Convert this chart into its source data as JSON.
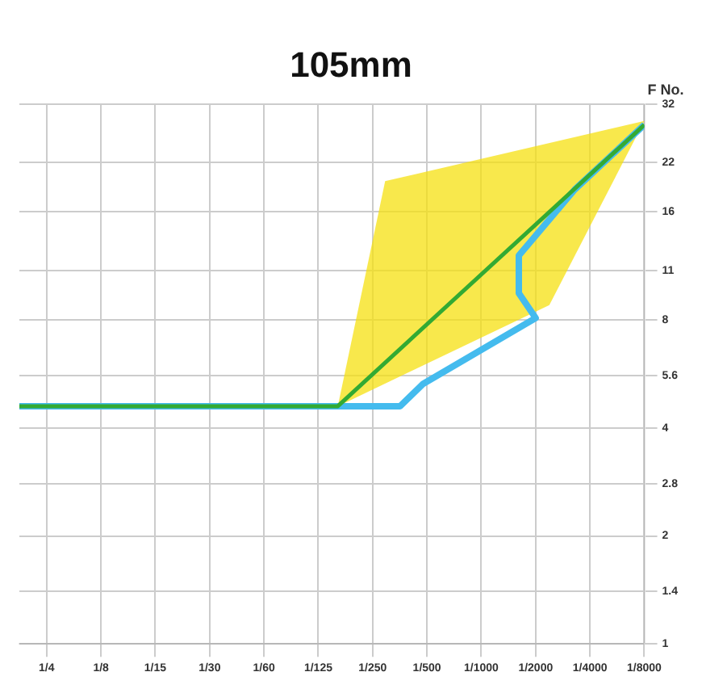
{
  "chart_data": {
    "type": "line",
    "title": "105mm",
    "ylabel": "F No.",
    "xlim": [
      0.354,
      0.000122
    ],
    "xticks": [
      {
        "value": 0.25,
        "label": "1/4"
      },
      {
        "value": 0.125,
        "label": "1/8"
      },
      {
        "value": 0.0625,
        "label": "1/15"
      },
      {
        "value": 0.03125,
        "label": "1/30"
      },
      {
        "value": 0.015625,
        "label": "1/60"
      },
      {
        "value": 0.0078125,
        "label": "1/125"
      },
      {
        "value": 0.00390625,
        "label": "1/250"
      },
      {
        "value": 0.001953125,
        "label": "1/500"
      },
      {
        "value": 0.0009765625,
        "label": "1/1000"
      },
      {
        "value": 0.00048828125,
        "label": "1/2000"
      },
      {
        "value": 0.000244140625,
        "label": "1/4000"
      },
      {
        "value": 0.0001220703125,
        "label": "1/8000"
      }
    ],
    "ylim": [
      1,
      32
    ],
    "yticks": [
      1,
      1.4,
      2,
      2.8,
      4,
      5.6,
      8,
      11,
      16,
      22,
      32
    ],
    "log": "xy",
    "grid": true,
    "legend": false,
    "marker": "none",
    "series": [
      {
        "type": "area",
        "color": "#f5e010",
        "x": [
          0.00609,
          0.00333,
          0.000122,
          0.00041,
          0.00609
        ],
        "values": [
          4.6,
          19.5,
          28.7,
          8.8,
          4.6
        ]
      },
      {
        "type": "line",
        "color": "#44bbee",
        "x": [
          0.354,
          0.00275,
          0.00206,
          0.000488,
          0.000605,
          0.000605,
          0.000296,
          0.000122
        ],
        "values": [
          4.6,
          4.6,
          5.3,
          8.1,
          9.5,
          12.1,
          18.5,
          28
        ]
      },
      {
        "type": "line",
        "color": "#33aa33",
        "x": [
          0.354,
          0.00609,
          0.000122
        ],
        "values": [
          4.6,
          4.6,
          28
        ]
      }
    ]
  }
}
